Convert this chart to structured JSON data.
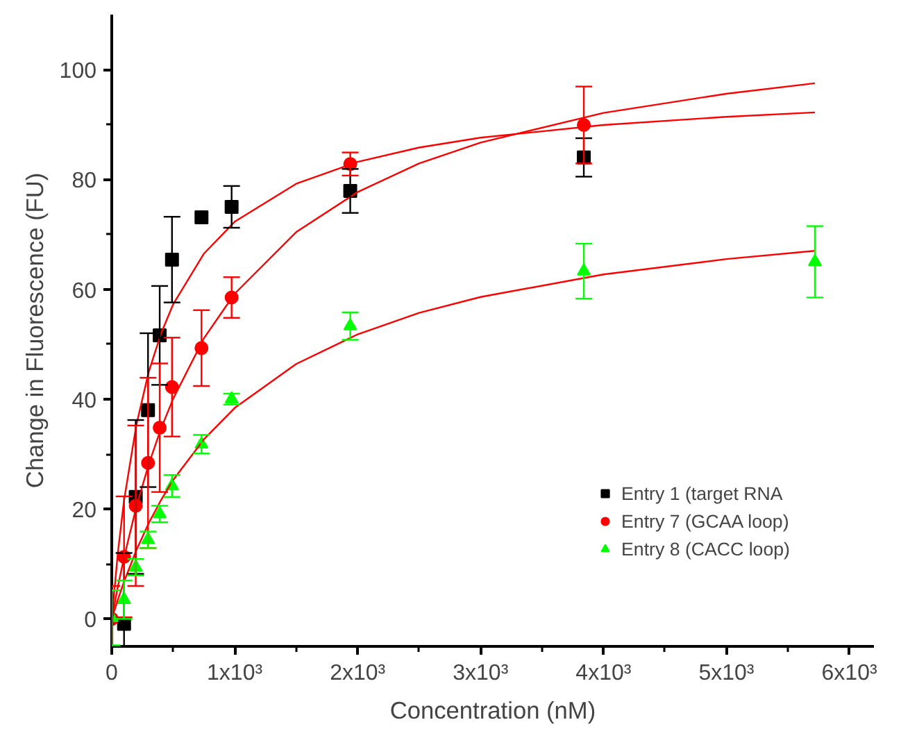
{
  "chart_data": {
    "type": "scatter",
    "xlabel": "Concentration (nM)",
    "ylabel": "Change in Fluorescence (FU)",
    "xlim": [
      0,
      6200
    ],
    "ylim": [
      -5,
      110
    ],
    "xticks": [
      0,
      {
        "value": 1000,
        "label": "1x10³"
      },
      {
        "value": 2000,
        "label": "2x10³"
      },
      {
        "value": 3000,
        "label": "3x10³"
      },
      {
        "value": 4000,
        "label": "4x10³"
      },
      {
        "value": 5000,
        "label": "5x10³"
      },
      {
        "value": 6000,
        "label": "6x10³"
      }
    ],
    "yticks": [
      0,
      20,
      40,
      60,
      80,
      100
    ],
    "grid": false,
    "legend": "bottom right",
    "series": [
      {
        "name": "Entry 1 (target RNA",
        "color": "#000000",
        "marker": "square",
        "x": [
          100,
          195,
          295,
          390,
          490,
          730,
          975,
          1940,
          3840
        ],
        "values": [
          -0.9,
          22.2,
          38,
          51.6,
          65.4,
          73.1,
          75,
          77.9,
          84
        ],
        "errors": [
          [
            -4.9,
            12
          ],
          14,
          14,
          9,
          7.8,
          null,
          3.8,
          4,
          3.5
        ]
      },
      {
        "name": "Entry 7 (GCAA loop)",
        "color": "#ff0000",
        "marker": "circle",
        "x": [
          0,
          100,
          195,
          295,
          390,
          490,
          730,
          975,
          1940,
          3840
        ],
        "values": [
          0,
          11.3,
          20.6,
          28.4,
          34.8,
          42.2,
          49.3,
          58.5,
          82.8,
          89.9
        ],
        "errors": [
          6,
          11,
          14.6,
          15.5,
          11.7,
          9,
          6.9,
          3.7,
          2.1,
          7
        ]
      },
      {
        "name": "Entry 8 (CACC loop)",
        "color": "#00ff00",
        "marker": "triangle",
        "x": [
          0,
          100,
          195,
          295,
          390,
          490,
          730,
          975,
          1940,
          3840,
          5720
        ],
        "values": [
          0.2,
          3.5,
          9.4,
          14.4,
          19.1,
          24.2,
          31.8,
          40,
          53.3,
          63.3,
          65
        ],
        "errors": [
          5,
          3.5,
          1.5,
          1.5,
          1.5,
          2,
          1.7,
          1,
          2.5,
          5,
          6.5
        ]
      },
      {
        "type": "line",
        "color": "#ff0000",
        "x": [
          0,
          50,
          100,
          200,
          300,
          400,
          500,
          750,
          1000,
          1500,
          2000,
          2500,
          3000,
          4000,
          5000,
          5720
        ],
        "values": [
          0,
          12.1,
          21.6,
          35.3,
          44.9,
          51.9,
          57.3,
          66.5,
          72.3,
          79.2,
          83.2,
          85.8,
          87.6,
          89.9,
          91.4,
          92.2
        ]
      },
      {
        "type": "line",
        "color": "#ff0000",
        "x": [
          0,
          50,
          100,
          200,
          300,
          400,
          500,
          750,
          1000,
          1500,
          2000,
          2500,
          3000,
          4000,
          5000,
          5720
        ],
        "values": [
          0,
          5.9,
          11.2,
          20.4,
          28.1,
          34.6,
          40.1,
          51.1,
          59.2,
          70.4,
          77.7,
          82.9,
          86.7,
          92.1,
          95.6,
          97.5
        ]
      },
      {
        "type": "line",
        "color": "#ff0000",
        "x": [
          0,
          50,
          100,
          200,
          300,
          400,
          500,
          750,
          1000,
          1500,
          2000,
          2500,
          3000,
          4000,
          5000,
          5720
        ],
        "values": [
          0,
          3.5,
          6.8,
          12.5,
          17.4,
          21.6,
          25.3,
          32.7,
          38.4,
          46.4,
          51.8,
          55.7,
          58.6,
          62.7,
          65.5,
          67.0
        ]
      }
    ]
  }
}
